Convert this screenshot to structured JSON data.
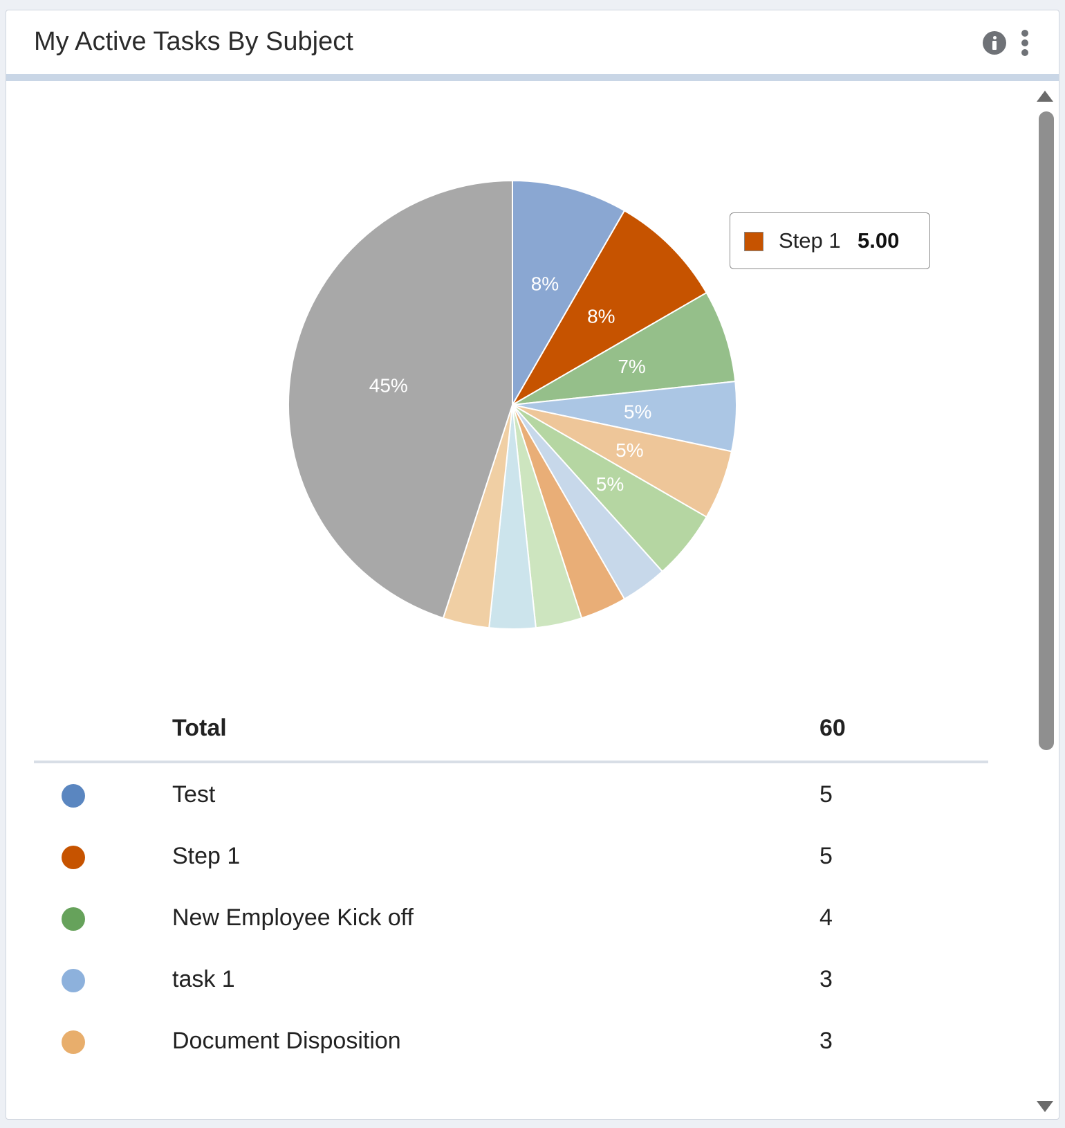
{
  "widget": {
    "title": "My Active Tasks By Subject"
  },
  "icons": {
    "info": "info-circle-icon",
    "menu": "more-vertical-icon",
    "scroll_up": "triangle-up-icon",
    "scroll_down": "triangle-down-icon"
  },
  "tooltip": {
    "label": "Step 1",
    "value": "5.00",
    "color": "#c65300"
  },
  "chart_data": {
    "type": "pie",
    "total": 60,
    "slices": [
      {
        "label": "Test",
        "value": 5,
        "color": "#8aa7d2",
        "pct_label": "8%"
      },
      {
        "label": "Step 1",
        "value": 5,
        "color": "#c65300",
        "pct_label": "8%"
      },
      {
        "label": "New Employee Kick off",
        "value": 4,
        "color": "#95bf8a",
        "pct_label": "7%"
      },
      {
        "label": "task 1",
        "value": 3,
        "color": "#abc6e4",
        "pct_label": "5%"
      },
      {
        "label": "Document Disposition",
        "value": 3,
        "color": "#eec699",
        "pct_label": "5%"
      },
      {
        "value": 3,
        "color": "#b5d6a2",
        "pct_label": "5%"
      },
      {
        "value": 2,
        "color": "#c7d8ea",
        "pct_label": ""
      },
      {
        "value": 2,
        "color": "#e9ae77",
        "pct_label": ""
      },
      {
        "value": 2,
        "color": "#cde5bf",
        "pct_label": ""
      },
      {
        "value": 2,
        "color": "#cce4ec",
        "pct_label": ""
      },
      {
        "value": 2,
        "color": "#f0cfa4",
        "pct_label": ""
      },
      {
        "value": 27,
        "color": "#a8a8a8",
        "pct_label": "45%"
      }
    ]
  },
  "legend": {
    "header_label": "Total",
    "header_value": "60",
    "rows": [
      {
        "label": "Test",
        "value": "5",
        "color": "#5a86c0"
      },
      {
        "label": "Step 1",
        "value": "5",
        "color": "#c65300"
      },
      {
        "label": "New Employee Kick off",
        "value": "4",
        "color": "#66a25b"
      },
      {
        "label": "task 1",
        "value": "3",
        "color": "#8db1dc"
      },
      {
        "label": "Document Disposition",
        "value": "3",
        "color": "#e8ae6c"
      }
    ]
  }
}
